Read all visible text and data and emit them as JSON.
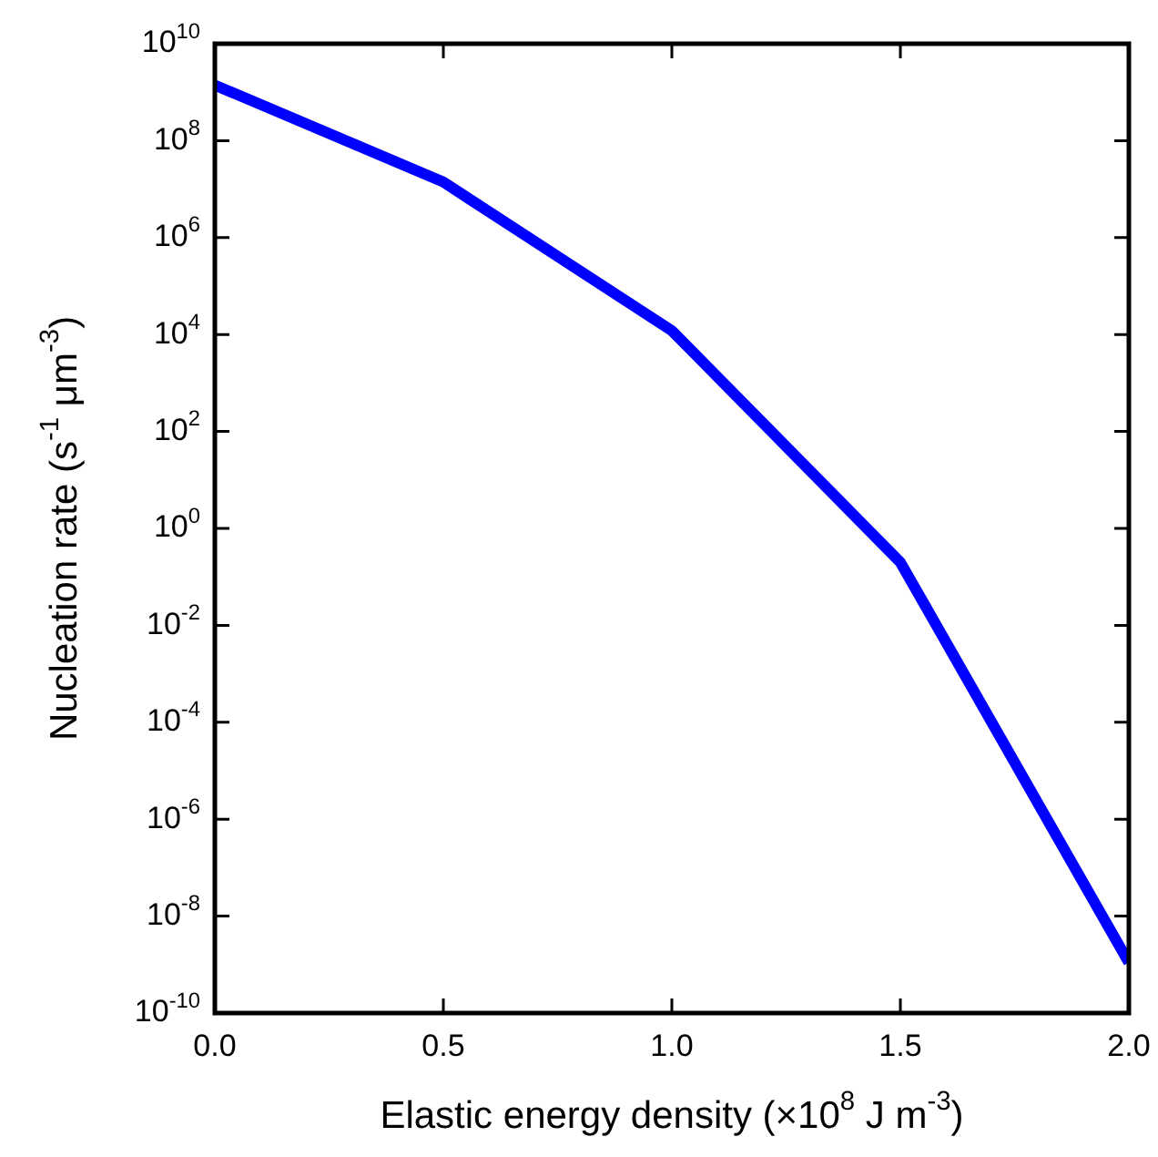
{
  "chart_data": {
    "type": "line",
    "xlabel": "Elastic energy density (×10$^{8}$ J m$^{-3}$)",
    "ylabel": "Nucleation rate (s$^{-1}$ μm$^{-3}$)",
    "x": [
      0.0,
      0.5,
      1.0,
      1.5,
      2.0
    ],
    "series": [
      {
        "color": "#0000ff",
        "values": [
          1400000000.0,
          14000000.0,
          12000.0,
          0.2,
          1.1e-09
        ]
      }
    ],
    "log": "y",
    "grid": false,
    "legend": false,
    "marker": "none",
    "line_style": "solid",
    "xlim": [
      0.0,
      2.0
    ],
    "xticks": [
      {
        "value": 0,
        "label": "0.0"
      },
      {
        "value": 0.5,
        "label": "0.5"
      },
      {
        "value": 1,
        "label": "1.0"
      },
      {
        "value": 1.5,
        "label": "1.5"
      },
      {
        "value": 2,
        "label": "2.0"
      }
    ],
    "ylim": [
      1e-10,
      10000000000.0
    ],
    "yticks": [
      {
        "value": 1e-10,
        "label": "10$^{-10}$"
      },
      {
        "value": 1e-08,
        "label": "10$^{-8}$"
      },
      {
        "value": 1e-06,
        "label": "10$^{-6}$"
      },
      {
        "value": 0.0001,
        "label": "10$^{-4}$"
      },
      {
        "value": 0.01,
        "label": "10$^{-2}$"
      },
      {
        "value": 1,
        "label": "10$^{0}$"
      },
      {
        "value": 100,
        "label": "10$^{2}$"
      },
      {
        "value": 10000.0,
        "label": "10$^{4}$"
      },
      {
        "value": 1000000.0,
        "label": "10$^{6}$"
      },
      {
        "value": 100000000.0,
        "label": "10$^{8}$"
      },
      {
        "value": 10000000000.0,
        "label": "10$^{10}$"
      }
    ]
  }
}
